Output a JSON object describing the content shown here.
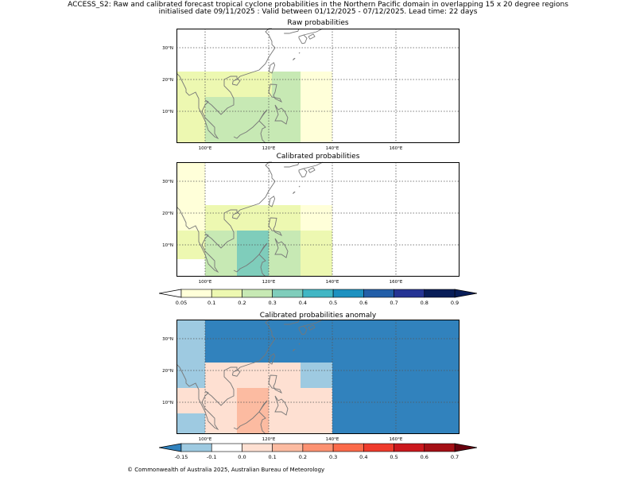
{
  "header": {
    "title_line1": "ACCESS_S2: Raw and calibrated forecast tropical cyclone probabilities in the Northern Pacific domain in overlapping 15 x 20 degree regions",
    "title_line2": "initialised date 09/11/2025 :  Valid between 01/12/2025 - 07/12/2025. Lead time: 22 days"
  },
  "footer": {
    "copyright": "© Commonwealth of Australia 2025, Australian Bureau of Meteorology"
  },
  "chart_data": [
    {
      "type": "heatmap",
      "title": "Raw probabilities",
      "xlim": [
        91,
        180
      ],
      "ylim": [
        0,
        36
      ],
      "xticks": [
        {
          "v": 100,
          "label": "100°E"
        },
        {
          "v": 120,
          "label": "120°E"
        },
        {
          "v": 140,
          "label": "140°E"
        },
        {
          "v": 160,
          "label": "160°E"
        }
      ],
      "yticks": [
        {
          "v": 10,
          "label": "10°N"
        },
        {
          "v": 20,
          "label": "20°N"
        },
        {
          "v": 30,
          "label": "30°N"
        }
      ],
      "cells": [
        {
          "x0": 91,
          "x1": 130,
          "y0": 0,
          "y1": 22.5,
          "value": 0.15
        },
        {
          "x0": 130,
          "x1": 140,
          "y0": 0,
          "y1": 22.5,
          "value": 0.07
        },
        {
          "x0": 100,
          "x1": 120,
          "y0": 0,
          "y1": 14.5,
          "value": 0.25
        },
        {
          "x0": 120,
          "x1": 130,
          "y0": 0,
          "y1": 14.5,
          "value": 0.25
        },
        {
          "x0": 121,
          "x1": 130,
          "y0": 14.5,
          "y1": 22.5,
          "value": 0.25
        }
      ]
    },
    {
      "type": "heatmap",
      "title": "Calibrated probabilities",
      "xlim": [
        91,
        180
      ],
      "ylim": [
        0,
        36
      ],
      "xticks": [
        {
          "v": 100,
          "label": "100°E"
        },
        {
          "v": 120,
          "label": "120°E"
        },
        {
          "v": 140,
          "label": "140°E"
        },
        {
          "v": 160,
          "label": "160°E"
        }
      ],
      "yticks": [
        {
          "v": 10,
          "label": "10°N"
        },
        {
          "v": 20,
          "label": "20°N"
        },
        {
          "v": 30,
          "label": "30°N"
        }
      ],
      "cells": [
        {
          "x0": 91,
          "x1": 100,
          "y0": 5.5,
          "y1": 36,
          "value": 0.07
        },
        {
          "x0": 100,
          "x1": 140,
          "y0": 0,
          "y1": 22.5,
          "value": 0.07
        },
        {
          "x0": 100,
          "x1": 130,
          "y0": 0,
          "y1": 22.5,
          "value": 0.15
        },
        {
          "x0": 91,
          "x1": 100,
          "y0": 5.5,
          "y1": 14.5,
          "value": 0.15
        },
        {
          "x0": 130,
          "x1": 140,
          "y0": 0,
          "y1": 14.5,
          "value": 0.15
        },
        {
          "x0": 100,
          "x1": 130,
          "y0": 0,
          "y1": 14.5,
          "value": 0.25
        },
        {
          "x0": 110,
          "x1": 130,
          "y0": 0,
          "y1": 14.5,
          "value": 0.35
        },
        {
          "x0": 120,
          "x1": 130,
          "y0": 0,
          "y1": 14.5,
          "value": 0.25
        }
      ]
    },
    {
      "type": "heatmap",
      "title": "Calibrated probabilities anomaly",
      "xlim": [
        91,
        180
      ],
      "ylim": [
        0,
        36
      ],
      "xticks": [
        {
          "v": 100,
          "label": "100°E"
        },
        {
          "v": 120,
          "label": "120°E"
        },
        {
          "v": 140,
          "label": "140°E"
        },
        {
          "v": 160,
          "label": "160°E"
        }
      ],
      "yticks": [
        {
          "v": 10,
          "label": "10°N"
        },
        {
          "v": 20,
          "label": "20°N"
        },
        {
          "v": 30,
          "label": "30°N"
        }
      ],
      "cells": [
        {
          "x0": 91,
          "x1": 180,
          "y0": 0,
          "y1": 36,
          "value": -0.2
        },
        {
          "x0": 91,
          "x1": 100,
          "y0": 0,
          "y1": 36,
          "value": -0.12
        },
        {
          "x0": 91,
          "x1": 100,
          "y0": 6.5,
          "y1": 14.5,
          "value": 0.0
        },
        {
          "x0": 100,
          "x1": 130,
          "y0": 14.5,
          "y1": 22.5,
          "value": 0.0
        },
        {
          "x0": 130,
          "x1": 140,
          "y0": 14.5,
          "y1": 22.5,
          "value": -0.12
        },
        {
          "x0": 100,
          "x1": 130,
          "y0": 0,
          "y1": 14.5,
          "value": 0.05
        },
        {
          "x0": 110,
          "x1": 120,
          "y0": 0,
          "y1": 14.5,
          "value": 0.15
        },
        {
          "x0": 130,
          "x1": 140,
          "y0": 0,
          "y1": 14.5,
          "value": 0.0
        }
      ]
    }
  ],
  "colorbars": [
    {
      "name": "probability",
      "bounds": [
        0.05,
        0.1,
        0.2,
        0.3,
        0.4,
        0.5,
        0.6,
        0.7,
        0.8,
        0.9
      ],
      "labels": [
        "0.05",
        "0.1",
        "0.2",
        "0.3",
        "0.4",
        "0.5",
        "0.6",
        "0.7",
        "0.8",
        "0.9"
      ],
      "under_color": "#ffffff",
      "colors": [
        "#ffffd9",
        "#edf8b1",
        "#c7e9b4",
        "#7fcdbb",
        "#41b6c4",
        "#1d91c0",
        "#225ea8",
        "#253494",
        "#081d58"
      ],
      "over_color": "#081d58"
    },
    {
      "name": "anomaly",
      "bounds": [
        -0.15,
        -0.1,
        0.0,
        0.1,
        0.2,
        0.3,
        0.4,
        0.5,
        0.6,
        0.7
      ],
      "labels": [
        "-0.15",
        "-0.1",
        "0.0",
        "0.1",
        "0.2",
        "0.3",
        "0.4",
        "0.5",
        "0.6",
        "0.7"
      ],
      "under_color": "#3182bd",
      "colors": [
        "#9ecae1",
        "#ffffff",
        "#fee0d2",
        "#fcbba1",
        "#fc9272",
        "#fb6a4a",
        "#ef3b2c",
        "#cb181d",
        "#a50f15"
      ],
      "over_color": "#67000d"
    }
  ]
}
